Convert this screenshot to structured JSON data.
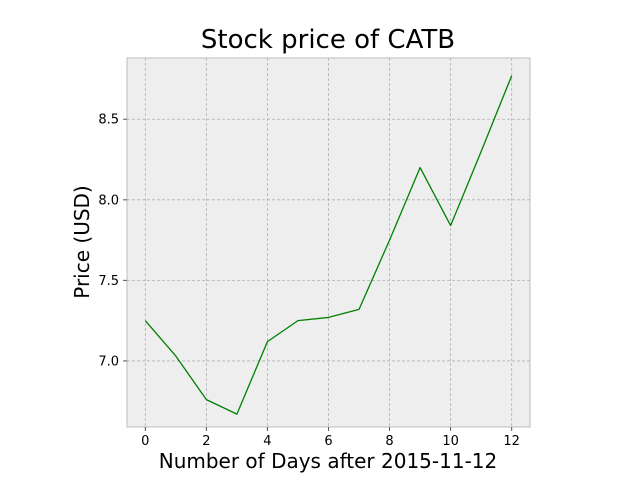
{
  "chart_data": {
    "type": "line",
    "title": "Stock price of CATB",
    "xlabel": "Number of Days after 2015-11-12",
    "ylabel": "Price (USD)",
    "xlim": [
      -0.6,
      12.6
    ],
    "ylim": [
      6.59,
      8.88
    ],
    "xticks": [
      0,
      2,
      4,
      6,
      8,
      10,
      12
    ],
    "yticks": [
      7.0,
      7.5,
      8.0,
      8.5
    ],
    "grid": true,
    "series": [
      {
        "color": "#008000",
        "x": [
          0,
          1,
          2,
          3,
          4,
          5,
          6,
          7,
          8,
          9,
          10,
          11,
          12
        ],
        "y": [
          7.25,
          7.03,
          6.76,
          6.67,
          7.12,
          7.25,
          7.27,
          7.32,
          7.75,
          8.2,
          7.84,
          8.3,
          8.77
        ]
      }
    ]
  }
}
